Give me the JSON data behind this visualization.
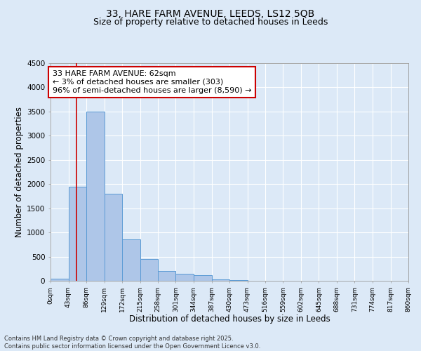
{
  "title_line1": "33, HARE FARM AVENUE, LEEDS, LS12 5QB",
  "title_line2": "Size of property relative to detached houses in Leeds",
  "xlabel": "Distribution of detached houses by size in Leeds",
  "ylabel": "Number of detached properties",
  "annotation_line1": "33 HARE FARM AVENUE: 62sqm",
  "annotation_line2": "← 3% of detached houses are smaller (303)",
  "annotation_line3": "96% of semi-detached houses are larger (8,590) →",
  "footer_line1": "Contains HM Land Registry data © Crown copyright and database right 2025.",
  "footer_line2": "Contains public sector information licensed under the Open Government Licence v3.0.",
  "bar_edges": [
    0,
    43,
    86,
    129,
    172,
    215,
    258,
    301,
    344,
    387,
    430,
    473,
    516,
    559,
    602,
    645,
    688,
    731,
    774,
    817,
    860
  ],
  "bar_values": [
    50,
    1950,
    3500,
    1800,
    850,
    450,
    200,
    150,
    120,
    30,
    10,
    5,
    3,
    2,
    1,
    1,
    0,
    0,
    0,
    0
  ],
  "tick_labels": [
    "0sqm",
    "43sqm",
    "86sqm",
    "129sqm",
    "172sqm",
    "215sqm",
    "258sqm",
    "301sqm",
    "344sqm",
    "387sqm",
    "430sqm",
    "473sqm",
    "516sqm",
    "559sqm",
    "602sqm",
    "645sqm",
    "688sqm",
    "731sqm",
    "774sqm",
    "817sqm",
    "860sqm"
  ],
  "bar_color": "#aec6e8",
  "bar_edge_color": "#5b9bd5",
  "red_line_x": 62,
  "ylim": [
    0,
    4500
  ],
  "yticks": [
    0,
    500,
    1000,
    1500,
    2000,
    2500,
    3000,
    3500,
    4000,
    4500
  ],
  "fig_bg": "#dce9f7",
  "plot_bg": "#dce9f7",
  "grid_color": "#ffffff",
  "title_fontsize": 10,
  "subtitle_fontsize": 9,
  "annotation_box_color": "#cc0000",
  "ann_fontsize": 8
}
